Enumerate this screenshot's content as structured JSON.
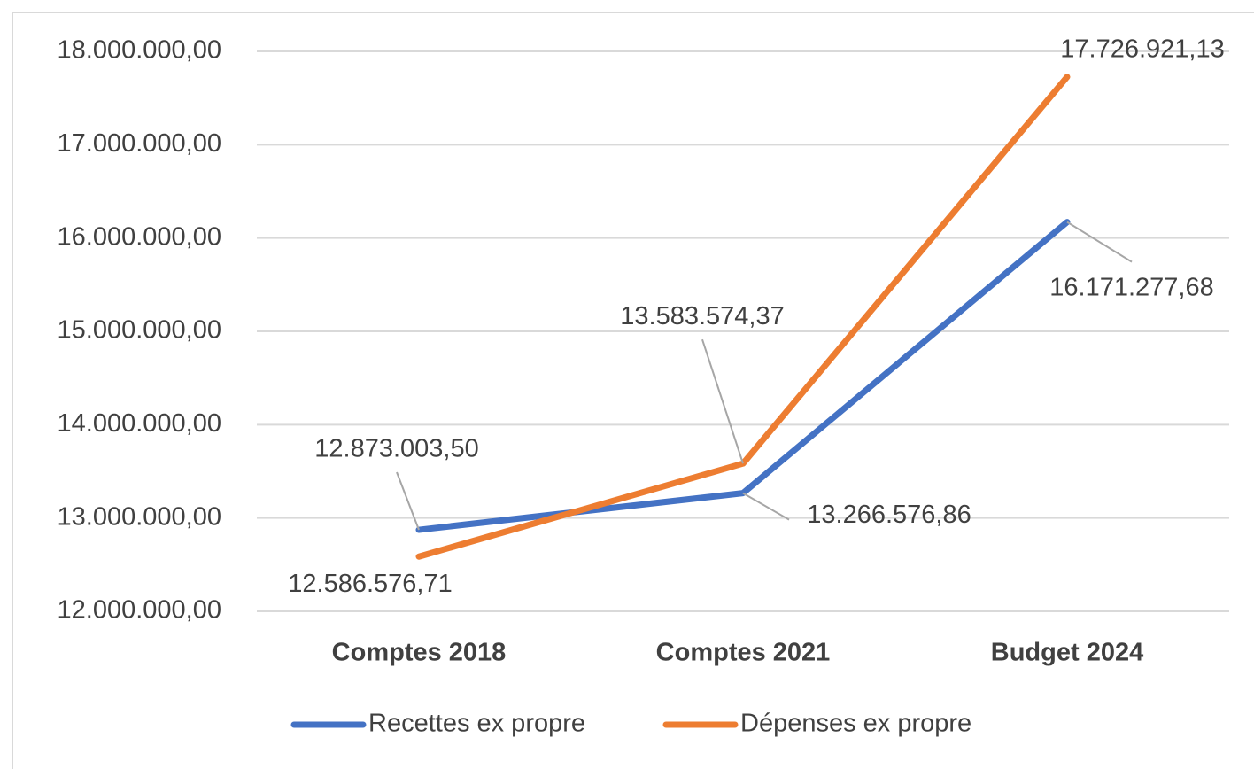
{
  "chart_data": {
    "type": "line",
    "categories": [
      "Comptes 2018",
      "Comptes 2021",
      "Budget 2024"
    ],
    "series": [
      {
        "name": "Recettes ex propre",
        "color": "#4472c4",
        "values": [
          12873003.5,
          13266576.86,
          16171277.68
        ],
        "value_labels": [
          "12.873.003,50",
          "13.266.576,86",
          "16.171.277,68"
        ]
      },
      {
        "name": "Dépenses ex propre",
        "color": "#ed7d31",
        "values": [
          12586576.71,
          13583574.37,
          17726921.13
        ],
        "value_labels": [
          "12.586.576,71",
          "13.583.574,37",
          "17.726.921,13"
        ]
      }
    ],
    "ylim": [
      12000000,
      18000000
    ],
    "yticks": [
      {
        "value": 12000000,
        "label": "12.000.000,00"
      },
      {
        "value": 13000000,
        "label": "13.000.000,00"
      },
      {
        "value": 14000000,
        "label": "14.000.000,00"
      },
      {
        "value": 15000000,
        "label": "15.000.000,00"
      },
      {
        "value": 16000000,
        "label": "16.000.000,00"
      },
      {
        "value": 17000000,
        "label": "17.000.000,00"
      },
      {
        "value": 18000000,
        "label": "18.000.000,00"
      }
    ],
    "grid": true,
    "legend": "bottom"
  }
}
